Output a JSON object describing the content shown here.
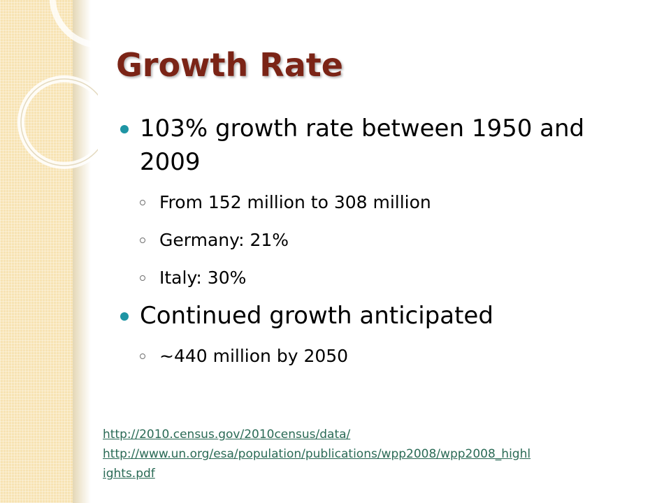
{
  "slide": {
    "title": "Growth Rate",
    "bullets": [
      {
        "text": "103% growth rate between 1950 and 2009",
        "subitems": [
          "From 152 million to 308 million",
          "Germany: 21%",
          "Italy: 30%"
        ]
      },
      {
        "text": "Continued growth anticipated",
        "subitems": [
          "~440 million by 2050"
        ]
      }
    ],
    "sources": [
      "http://2010.census.gov/2010census/data/",
      "http://www.un.org/esa/population/publications/wpp2008/wpp2008_highl",
      "ights.pdf"
    ]
  },
  "colors": {
    "title": "#7b2416",
    "bullet": "#1e95a4",
    "link": "#2a6a55",
    "band": "#f7e3b3"
  }
}
